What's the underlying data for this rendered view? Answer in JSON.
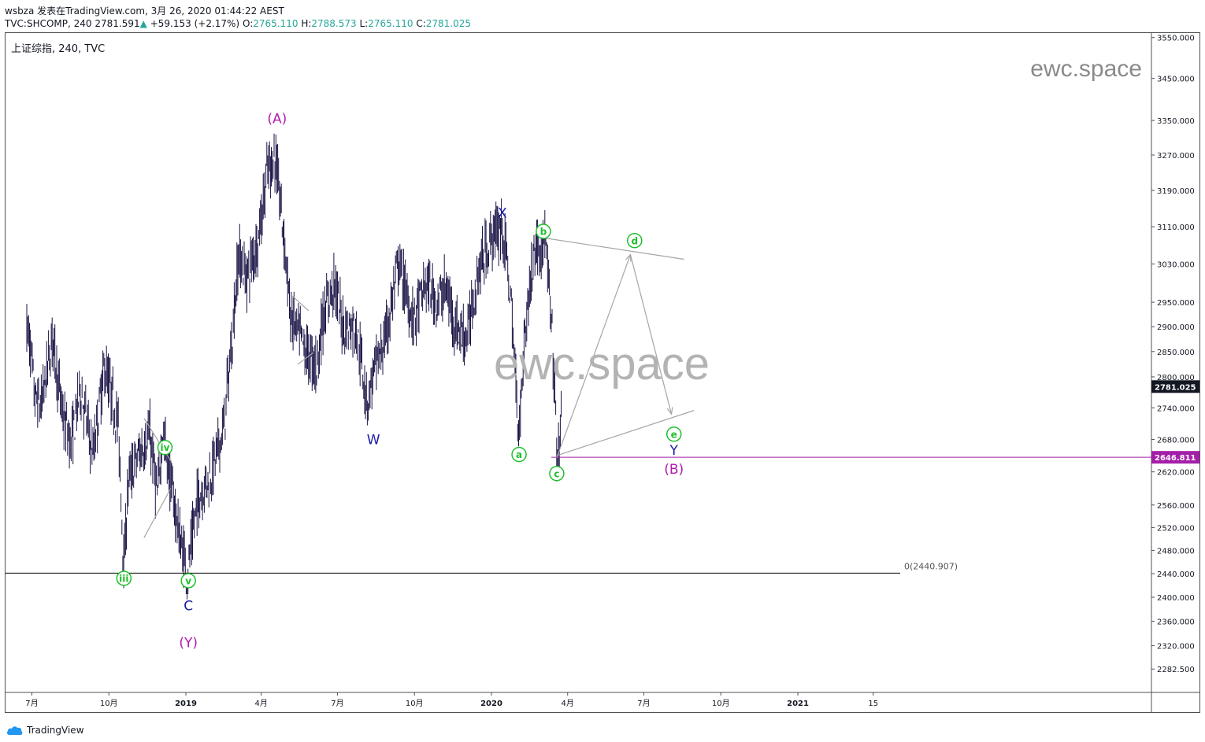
{
  "header": {
    "author": "wsbza",
    "published": "发表在TradingView.com, 3月 26, 2020 01:44:22 AEST",
    "symbol": "TVC:SHCOMP, 240",
    "last": "2781.591",
    "change": "+59.153 (+2.17%)",
    "o_label": "O:",
    "o_val": "2765.110",
    "h_label": "H:",
    "h_val": "2788.573",
    "l_label": "L:",
    "l_val": "2765.110",
    "c_label": "C:",
    "c_val": "2781.025"
  },
  "legend": "上证综指, 240, TVC",
  "watermark_small": "ewc.space",
  "watermark_big": "ewc.space",
  "footer": {
    "brand": "TradingView"
  },
  "colors": {
    "candle": "#1a1446",
    "wave_green": "#1fbf2d",
    "wave_blue": "#1a1aa8",
    "wave_purple": "#b019b0",
    "line_gray": "#a6a6a6",
    "price_tag_dark": "#131722",
    "price_tag_purple": "#a41fa8"
  },
  "chart_data": {
    "type": "candlestick",
    "symbol": "TVC:SHCOMP",
    "interval": "240",
    "x_axis_labels": [
      "7月",
      "10月",
      "2019",
      "4月",
      "7月",
      "10月",
      "2020",
      "4月",
      "7月",
      "10月",
      "2021",
      "15"
    ],
    "y_axis_labels": [
      "3550.000",
      "3450.000",
      "3350.000",
      "3270.000",
      "3190.000",
      "3110.000",
      "3030.000",
      "2950.000",
      "2900.000",
      "2850.000",
      "2800.000",
      "2740.000",
      "2680.000",
      "2620.000",
      "2560.000",
      "2520.000",
      "2480.000",
      "2440.000",
      "2400.000",
      "2360.000",
      "2320.000",
      "2282.500"
    ],
    "y_scale": "log",
    "last_price_tag": "2781.025",
    "level_tag": "2646.811",
    "fib_label": "0(2440.907)",
    "fib_level": 2440.907,
    "price_path": [
      [
        "2018-06-25",
        2900
      ],
      [
        "2018-06-29",
        2860
      ],
      [
        "2018-07-04",
        2760
      ],
      [
        "2018-07-12",
        2740
      ],
      [
        "2018-07-26",
        2880
      ],
      [
        "2018-08-06",
        2730
      ],
      [
        "2018-08-17",
        2670
      ],
      [
        "2018-08-28",
        2780
      ],
      [
        "2018-09-12",
        2650
      ],
      [
        "2018-09-26",
        2820
      ],
      [
        "2018-10-12",
        2710
      ],
      [
        "2018-10-19",
        2449
      ],
      [
        "2018-10-24",
        2600
      ],
      [
        "2018-11-05",
        2650
      ],
      [
        "2018-11-19",
        2690
      ],
      [
        "2018-11-28",
        2570
      ],
      [
        "2018-12-04",
        2700
      ],
      [
        "2018-12-14",
        2600
      ],
      [
        "2018-12-25",
        2500
      ],
      [
        "2019-01-03",
        2440
      ],
      [
        "2019-01-15",
        2570
      ],
      [
        "2019-02-01",
        2620
      ],
      [
        "2019-02-15",
        2700
      ],
      [
        "2019-02-25",
        2870
      ],
      [
        "2019-03-05",
        3050
      ],
      [
        "2019-03-15",
        3000
      ],
      [
        "2019-03-29",
        3090
      ],
      [
        "2019-04-08",
        3230
      ],
      [
        "2019-04-17",
        3270
      ],
      [
        "2019-04-23",
        3180
      ],
      [
        "2019-04-30",
        3050
      ],
      [
        "2019-05-06",
        2920
      ],
      [
        "2019-05-17",
        2880
      ],
      [
        "2019-05-24",
        2850
      ],
      [
        "2019-06-06",
        2820
      ],
      [
        "2019-06-14",
        2920
      ],
      [
        "2019-06-27",
        2990
      ],
      [
        "2019-07-08",
        2900
      ],
      [
        "2019-07-23",
        2900
      ],
      [
        "2019-08-06",
        2750
      ],
      [
        "2019-08-12",
        2800
      ],
      [
        "2019-08-28",
        2880
      ],
      [
        "2019-09-12",
        3030
      ],
      [
        "2019-09-30",
        2910
      ],
      [
        "2019-10-15",
        2990
      ],
      [
        "2019-10-28",
        2950
      ],
      [
        "2019-11-07",
        2980
      ],
      [
        "2019-11-20",
        2900
      ],
      [
        "2019-12-03",
        2880
      ],
      [
        "2019-12-17",
        3020
      ],
      [
        "2020-01-02",
        3090
      ],
      [
        "2020-01-14",
        3110
      ],
      [
        "2020-01-23",
        2980
      ],
      [
        "2020-02-03",
        2690
      ],
      [
        "2020-02-10",
        2890
      ],
      [
        "2020-02-21",
        3060
      ],
      [
        "2020-03-05",
        3080
      ],
      [
        "2020-03-10",
        2970
      ],
      [
        "2020-03-16",
        2800
      ],
      [
        "2020-03-19",
        2646
      ],
      [
        "2020-03-23",
        2660
      ],
      [
        "2020-03-25",
        2781
      ]
    ],
    "wave_labels": [
      {
        "text": "(A)",
        "date": "2019-04-20",
        "price": 3355,
        "color": "purple",
        "circled": false
      },
      {
        "text": "iii",
        "date": "2018-10-19",
        "price": 2432,
        "color": "green",
        "circled": true
      },
      {
        "text": "iv",
        "date": "2018-12-07",
        "price": 2665,
        "color": "green",
        "circled": true
      },
      {
        "text": "v",
        "date": "2019-01-04",
        "price": 2428,
        "color": "green",
        "circled": true
      },
      {
        "text": "C",
        "date": "2019-01-04",
        "price": 2386,
        "color": "blue",
        "circled": false
      },
      {
        "text": "(Y)",
        "date": "2019-01-04",
        "price": 2325,
        "color": "purple",
        "circled": false
      },
      {
        "text": "W",
        "date": "2019-08-13",
        "price": 2680,
        "color": "blue",
        "circled": false
      },
      {
        "text": "X",
        "date": "2020-01-14",
        "price": 3140,
        "color": "blue",
        "circled": false
      },
      {
        "text": "a",
        "date": "2020-02-03",
        "price": 2652,
        "color": "green",
        "circled": true
      },
      {
        "text": "b",
        "date": "2020-03-03",
        "price": 3100,
        "color": "green",
        "circled": true
      },
      {
        "text": "c",
        "date": "2020-03-19",
        "price": 2617,
        "color": "green",
        "circled": true
      },
      {
        "text": "d",
        "date": "2020-06-20",
        "price": 3080,
        "color": "green",
        "circled": true
      },
      {
        "text": "e",
        "date": "2020-08-06",
        "price": 2690,
        "color": "green",
        "circled": true
      },
      {
        "text": "Y",
        "date": "2020-08-06",
        "price": 2660,
        "color": "blue",
        "circled": false
      },
      {
        "text": "(B)",
        "date": "2020-08-06",
        "price": 2625,
        "color": "purple",
        "circled": false
      }
    ],
    "projection_path": [
      [
        "2020-03-19",
        2646
      ],
      [
        "2020-06-15",
        3050
      ],
      [
        "2020-08-03",
        2728
      ]
    ],
    "triangle_upper_line": [
      [
        "2020-02-28",
        3087
      ],
      [
        "2020-08-18",
        3040
      ]
    ],
    "triangle_lower_line": [
      [
        "2020-03-19",
        2650
      ],
      [
        "2020-08-30",
        2735
      ]
    ],
    "diagonal_upper": [
      [
        "2018-11-12",
        2720
      ],
      [
        "2018-12-14",
        2640
      ]
    ],
    "diagonal_lower": [
      [
        "2018-11-12",
        2502
      ],
      [
        "2018-12-14",
        2590
      ]
    ]
  }
}
